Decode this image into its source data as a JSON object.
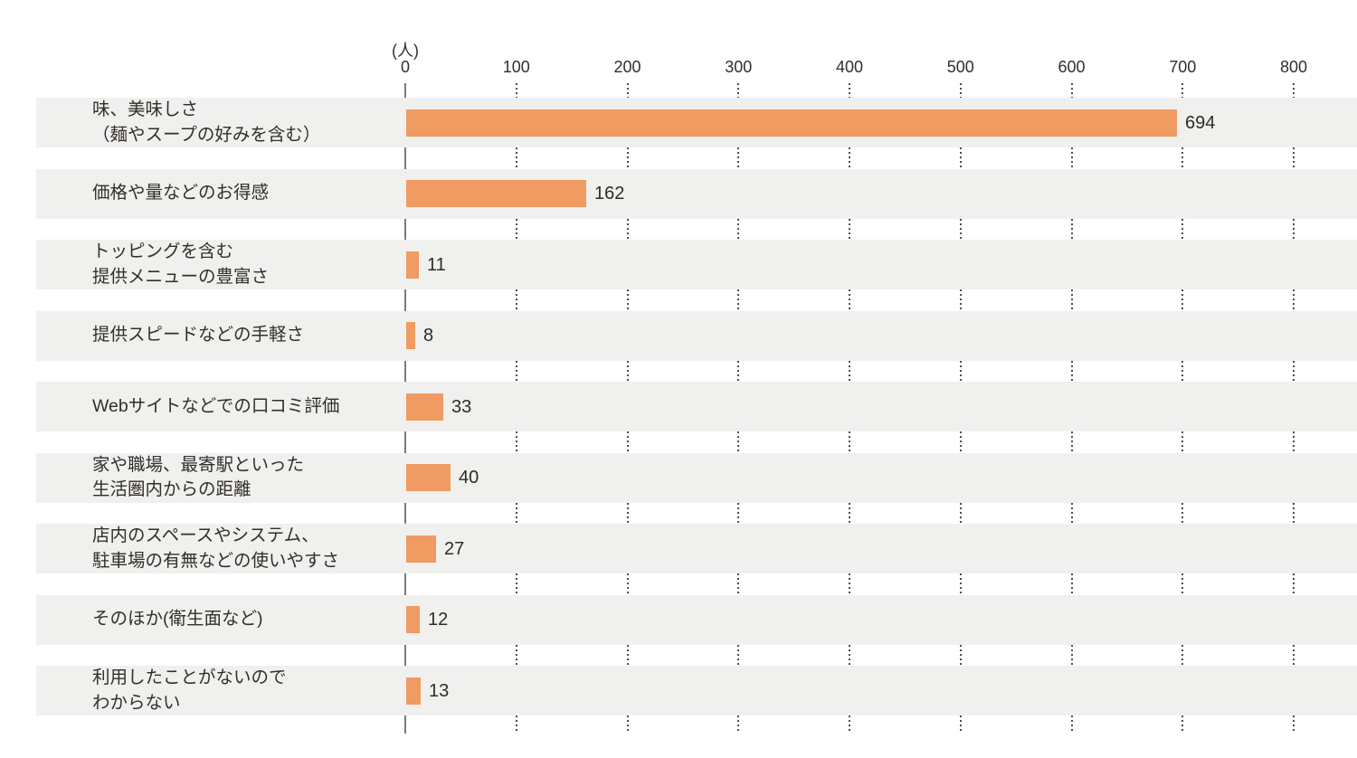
{
  "chart_data": {
    "type": "bar",
    "orientation": "horizontal",
    "title": "",
    "unit_label": "(人)",
    "xlabel": "",
    "ylabel": "",
    "xlim": [
      0,
      800
    ],
    "x_ticks": [
      0,
      100,
      200,
      300,
      400,
      500,
      600,
      700,
      800
    ],
    "grid": "dotted vertical gridlines shown only in gaps between row bands",
    "legend": "none",
    "categories": [
      "味、美味しさ\n（麺やスープの好みを含む）",
      "価格や量などのお得感",
      "トッピングを含む\n提供メニューの豊富さ",
      "提供スピードなどの手軽さ",
      "Webサイトなどでの口コミ評価",
      "家や職場、最寄駅といった\n生活圏内からの距離",
      "店内のスペースやシステム、\n駐車場の有無などの使いやすさ",
      "そのほか(衛生面など)",
      "利用したことがないので\nわからない"
    ],
    "values": [
      694,
      162,
      11,
      8,
      33,
      40,
      27,
      12,
      13
    ],
    "value_labels": [
      "694",
      "162",
      "11",
      "8",
      "33",
      "40",
      "27",
      "12",
      "13"
    ],
    "colors": {
      "bar": "#ef9b61",
      "row_band": "#f0f0ef",
      "axis_line": "#7b7b7b",
      "grid_dots": "#524c48",
      "text": "#332e2b",
      "background": "#ffffff"
    }
  }
}
